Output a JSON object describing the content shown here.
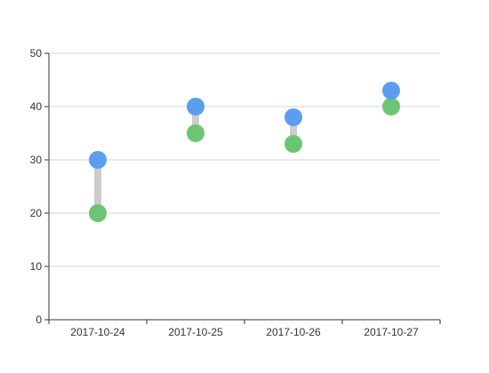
{
  "chart_data": {
    "type": "scatter",
    "style": "dumbbell",
    "categories": [
      "2017-10-24",
      "2017-10-25",
      "2017-10-26",
      "2017-10-27"
    ],
    "series": [
      {
        "color": "#5b9ef0",
        "values": [
          30,
          40,
          38,
          43
        ]
      },
      {
        "color": "#6cc575",
        "values": [
          20,
          35,
          33,
          40
        ]
      }
    ],
    "connector_color": "#cccccc",
    "yticks": [
      0,
      10,
      20,
      30,
      40,
      50
    ],
    "ylim": [
      0,
      50
    ],
    "grid": true
  }
}
